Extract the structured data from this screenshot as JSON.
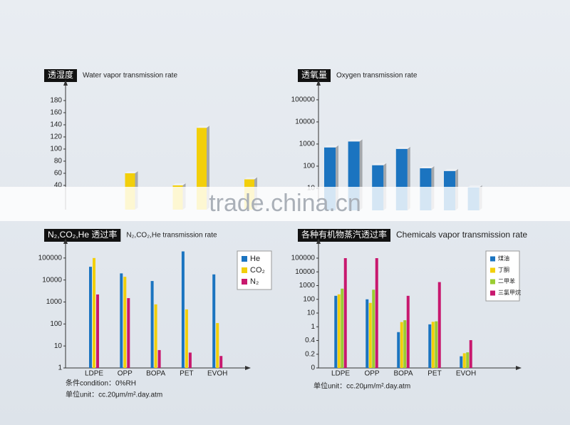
{
  "watermark": "trade.china.cn",
  "chart_data": [
    {
      "type": "bar",
      "title": "透湿度",
      "subtitle": "Water vapor transmission rate",
      "categories": [
        null,
        null,
        null,
        null,
        null,
        null,
        null,
        null
      ],
      "values": [
        null,
        null,
        60,
        null,
        40,
        135,
        null,
        50
      ],
      "color": "#f2cf0a",
      "ylim": [
        0,
        200
      ],
      "yticks": [
        40,
        60,
        80,
        100,
        120,
        140,
        160,
        180
      ]
    },
    {
      "type": "bar",
      "title": "透氧量",
      "subtitle": "Oxygen transmission rate",
      "categories": [
        null,
        null,
        null,
        null,
        null,
        null,
        null
      ],
      "values": [
        700,
        1300,
        110,
        600,
        80,
        60,
        11
      ],
      "color": "#1b74c0",
      "yscale": "log",
      "ylim": [
        1,
        200000
      ],
      "yticks": [
        10,
        100,
        1000,
        10000,
        100000
      ]
    },
    {
      "type": "grouped_bar",
      "title": "N₂,CO₂,He 透过率",
      "subtitle": "N₂,CO₂,He transmission rate",
      "categories": [
        "LDPE",
        "OPP",
        "BOPA",
        "PET",
        "EVOH"
      ],
      "series": [
        {
          "name": "He",
          "color": "#1b74c0",
          "values": [
            40000,
            20000,
            9000,
            200000,
            18000
          ]
        },
        {
          "name": "CO₂",
          "color": "#f2cf0a",
          "values": [
            100000,
            14000,
            780,
            460,
            110
          ]
        },
        {
          "name": "N₂",
          "color": "#c8186e",
          "values": [
            2200,
            1500,
            6.5,
            5,
            3.5
          ]
        }
      ],
      "yscale": "log",
      "ylim": [
        1,
        1000000
      ],
      "yticks": [
        1,
        10,
        100,
        1000,
        10000,
        100000
      ],
      "notes": [
        "条件condition：0%RH",
        "单位unit：cc.20μm/m².day.atm"
      ]
    },
    {
      "type": "grouped_bar",
      "title": "各种有机物蒸汽透过率",
      "subtitle": "Chemicals vapor transmission rate",
      "categories": [
        "LDPE",
        "OPP",
        "BOPA",
        "PET",
        "EVOH"
      ],
      "series": [
        {
          "name": "煤油",
          "color": "#1b74c0",
          "values": [
            180,
            100,
            0.7,
            1.5,
            0.17
          ]
        },
        {
          "name": "丁酮",
          "color": "#f2cf0a",
          "values": [
            230,
            55,
            2.2,
            2.3,
            0.21
          ]
        },
        {
          "name": "二甲苯",
          "color": "#9acd32",
          "values": [
            600,
            500,
            3,
            2.5,
            0.22
          ]
        },
        {
          "name": "三氯甲烷",
          "color": "#c8186e",
          "values": [
            100000,
            100000,
            180,
            1800,
            0.41
          ]
        }
      ],
      "yscale": "tick-spaced",
      "ylim": [
        0,
        100000
      ],
      "yticks": [
        0,
        0.2,
        0.4,
        1,
        10,
        100,
        1000,
        10000,
        100000
      ],
      "notes": [
        "单位unit：cc.20μm/m².day.atm"
      ]
    }
  ]
}
